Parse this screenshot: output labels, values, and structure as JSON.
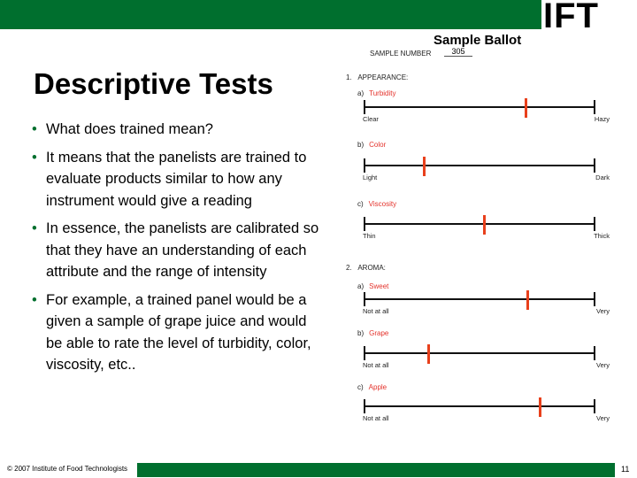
{
  "logo": "IFT",
  "title": "Descriptive Tests",
  "bullets": [
    "What does trained mean?",
    "It means that the panelists are trained to evaluate products similar to how any instrument would give a reading",
    "In essence, the panelists are calibrated so that they have an understanding of each attribute and the range of intensity",
    "For example, a trained panel would be a given a sample of grape juice and would be able to rate the level of turbidity, color, viscosity, etc.."
  ],
  "ballot": {
    "title": "Sample Ballot",
    "sample_number_label": "SAMPLE NUMBER",
    "sample_number": "305",
    "sections": [
      {
        "num": "1.",
        "label": "APPEARANCE:",
        "items": [
          {
            "letter": "a)",
            "name": "Turbidity",
            "low": "Clear",
            "high": "Hazy",
            "rating": 0.7
          },
          {
            "letter": "b)",
            "name": "Color",
            "low": "Light",
            "high": "Dark",
            "rating": 0.26
          },
          {
            "letter": "c)",
            "name": "Viscosity",
            "low": "Thin",
            "high": "Thick",
            "rating": 0.52
          }
        ]
      },
      {
        "num": "2.",
        "label": "AROMA:",
        "items": [
          {
            "letter": "a)",
            "name": "Sweet",
            "low": "Not at all",
            "high": "Very",
            "rating": 0.705
          },
          {
            "letter": "b)",
            "name": "Grape",
            "low": "Not at all",
            "high": "Very",
            "rating": 0.28
          },
          {
            "letter": "c)",
            "name": "Apple",
            "low": "Not at all",
            "high": "Very",
            "rating": 0.76
          }
        ]
      }
    ]
  },
  "footer": {
    "copyright": "© 2007 Institute of Food Technologists",
    "page": "11"
  },
  "colors": {
    "brand_green": "#006f2e",
    "mark": "#e8401c",
    "attribute_label": "#e4322b"
  }
}
